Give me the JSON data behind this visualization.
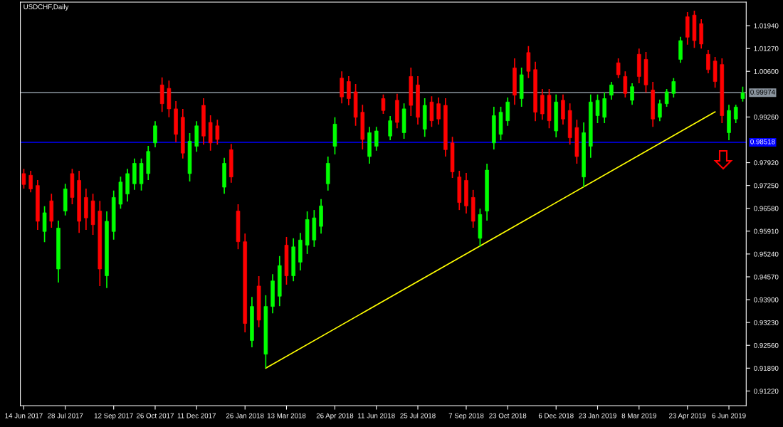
{
  "chart_data": {
    "type": "candlestick",
    "title": "USDCHF,Daily",
    "categories": [
      "14 Jun 2017",
      null,
      null,
      null,
      null,
      null,
      "28 Jul 2017",
      null,
      null,
      null,
      null,
      null,
      null,
      "12 Sep 2017",
      null,
      null,
      null,
      null,
      null,
      "26 Oct 2017",
      null,
      null,
      null,
      null,
      null,
      "11 Dec 2017",
      null,
      null,
      null,
      null,
      null,
      null,
      "26 Jan 2018",
      null,
      null,
      null,
      null,
      null,
      "13 Mar 2018",
      null,
      null,
      null,
      null,
      null,
      null,
      "26 Apr 2018",
      null,
      null,
      null,
      null,
      null,
      "11 Jun 2018",
      null,
      null,
      null,
      null,
      null,
      "25 Jul 2018",
      null,
      null,
      null,
      null,
      null,
      null,
      "7 Sep 2018",
      null,
      null,
      null,
      null,
      null,
      "23 Oct 2018",
      null,
      null,
      null,
      null,
      null,
      null,
      "6 Dec 2018",
      null,
      null,
      null,
      null,
      null,
      "23 Jan 2019",
      null,
      null,
      null,
      null,
      null,
      "8 Mar 2019",
      null,
      null,
      null,
      null,
      null,
      null,
      "23 Apr 2019",
      null,
      null,
      null,
      null,
      null,
      "6 Jun 2019",
      null,
      null
    ],
    "ohlc": [
      [
        0.976,
        0.9774,
        0.9716,
        0.9728
      ],
      [
        0.9755,
        0.9768,
        0.9705,
        0.9715
      ],
      [
        0.9725,
        0.9741,
        0.9595,
        0.962
      ],
      [
        0.959,
        0.9664,
        0.9559,
        0.9645
      ],
      [
        0.968,
        0.9701,
        0.9601,
        0.962
      ],
      [
        0.948,
        0.9622,
        0.944,
        0.96
      ],
      [
        0.965,
        0.973,
        0.9637,
        0.9715
      ],
      [
        0.976,
        0.9774,
        0.967,
        0.969
      ],
      [
        0.974,
        0.9768,
        0.9586,
        0.962
      ],
      [
        0.969,
        0.9716,
        0.9595,
        0.963
      ],
      [
        0.968,
        0.9701,
        0.958,
        0.961
      ],
      [
        0.965,
        0.968,
        0.943,
        0.948
      ],
      [
        0.946,
        0.9649,
        0.9424,
        0.962
      ],
      [
        0.959,
        0.971,
        0.9566,
        0.969
      ],
      [
        0.967,
        0.9751,
        0.9657,
        0.9735
      ],
      [
        0.97,
        0.9774,
        0.9678,
        0.976
      ],
      [
        0.973,
        0.9804,
        0.9712,
        0.979
      ],
      [
        0.973,
        0.9804,
        0.971,
        0.979
      ],
      [
        0.976,
        0.9841,
        0.9741,
        0.9825
      ],
      [
        0.985,
        0.9914,
        0.9837,
        0.99
      ],
      [
        1.002,
        1.0042,
        0.9941,
        0.9965
      ],
      [
        1.001,
        1.0033,
        0.9925,
        0.995
      ],
      [
        0.995,
        0.9973,
        0.9852,
        0.9875
      ],
      [
        0.9925,
        0.995,
        0.9804,
        0.982
      ],
      [
        0.976,
        0.9879,
        0.9737,
        0.9855
      ],
      [
        0.984,
        0.9914,
        0.9824,
        0.99
      ],
      [
        0.996,
        0.9981,
        0.9845,
        0.987
      ],
      [
        0.991,
        0.9931,
        0.9827,
        0.985
      ],
      [
        0.99,
        0.9918,
        0.9845,
        0.986
      ],
      [
        0.972,
        0.9806,
        0.9701,
        0.979
      ],
      [
        0.983,
        0.9847,
        0.9733,
        0.975
      ],
      [
        0.965,
        0.967,
        0.9538,
        0.956
      ],
      [
        0.956,
        0.9584,
        0.9294,
        0.932
      ],
      [
        0.927,
        0.9398,
        0.925,
        0.937
      ],
      [
        0.943,
        0.9459,
        0.9309,
        0.933
      ],
      [
        0.923,
        0.9403,
        0.9189,
        0.937
      ],
      [
        0.937,
        0.9465,
        0.935,
        0.9445
      ],
      [
        0.94,
        0.9518,
        0.9371,
        0.949
      ],
      [
        0.955,
        0.9574,
        0.9434,
        0.946
      ],
      [
        0.946,
        0.957,
        0.9444,
        0.9545
      ],
      [
        0.95,
        0.9586,
        0.9476,
        0.9565
      ],
      [
        0.955,
        0.9649,
        0.9524,
        0.9625
      ],
      [
        0.9565,
        0.9653,
        0.9545,
        0.963
      ],
      [
        0.9605,
        0.9685,
        0.9584,
        0.9665
      ],
      [
        0.973,
        0.981,
        0.971,
        0.979
      ],
      [
        0.984,
        0.9925,
        0.9816,
        0.9905
      ],
      [
        1.004,
        1.006,
        0.9966,
        0.9985
      ],
      [
        1.003,
        1.0046,
        0.996,
        0.998
      ],
      [
        1.0,
        1.0023,
        0.99,
        0.9925
      ],
      [
        0.994,
        0.9962,
        0.9831,
        0.986
      ],
      [
        0.981,
        0.9897,
        0.9789,
        0.988
      ],
      [
        0.984,
        0.9897,
        0.9827,
        0.9885
      ],
      [
        0.998,
        0.9992,
        0.9935,
        0.9945
      ],
      [
        0.987,
        0.9929,
        0.9858,
        0.9915
      ],
      [
        0.9975,
        0.9994,
        0.9893,
        0.991
      ],
      [
        0.988,
        0.9966,
        0.9862,
        0.995
      ],
      [
        1.0045,
        1.0071,
        0.9929,
        0.996
      ],
      [
        1.002,
        1.0046,
        0.9904,
        0.9925
      ],
      [
        0.989,
        0.9981,
        0.9868,
        0.996
      ],
      [
        0.997,
        0.9987,
        0.9897,
        0.9915
      ],
      [
        0.9965,
        0.9983,
        0.9904,
        0.992
      ],
      [
        0.996,
        0.9981,
        0.981,
        0.983
      ],
      [
        0.985,
        0.9868,
        0.9747,
        0.9765
      ],
      [
        0.975,
        0.9768,
        0.9653,
        0.9675
      ],
      [
        0.974,
        0.9762,
        0.9643,
        0.9665
      ],
      [
        0.969,
        0.9712,
        0.9601,
        0.962
      ],
      [
        0.957,
        0.9657,
        0.9545,
        0.964
      ],
      [
        0.965,
        0.9789,
        0.9622,
        0.977
      ],
      [
        0.985,
        0.9956,
        0.9831,
        0.993
      ],
      [
        0.9875,
        0.9956,
        0.9858,
        0.994
      ],
      [
        0.9915,
        0.9983,
        0.99,
        0.997
      ],
      [
        1.007,
        1.0098,
        0.9962,
        0.999
      ],
      [
        0.998,
        1.0071,
        0.9956,
        1.005
      ],
      [
        1.0115,
        1.0134,
        1.004,
        1.006
      ],
      [
        1.0065,
        1.0088,
        0.9914,
        0.994
      ],
      [
        0.999,
        1.0008,
        0.9918,
        0.9935
      ],
      [
        0.999,
        1.0008,
        0.9893,
        0.9915
      ],
      [
        0.9885,
        0.9992,
        0.9866,
        0.997
      ],
      [
        0.9975,
        0.9992,
        0.9904,
        0.992
      ],
      [
        0.9945,
        0.9966,
        0.9845,
        0.9865
      ],
      [
        0.9895,
        0.9918,
        0.9789,
        0.981
      ],
      [
        0.975,
        0.991,
        0.972,
        0.988
      ],
      [
        0.984,
        0.9992,
        0.9806,
        0.997
      ],
      [
        0.993,
        0.9992,
        0.9908,
        0.9975
      ],
      [
        0.9925,
        0.9998,
        0.9908,
        0.998
      ],
      [
        0.999,
        1.0029,
        0.9977,
        1.002
      ],
      [
        1.0085,
        1.0098,
        1.004,
        1.005
      ],
      [
        1.0045,
        1.006,
        0.9983,
        0.9995
      ],
      [
        0.9975,
        1.0025,
        0.9962,
        1.0015
      ],
      [
        1.011,
        1.0127,
        1.0025,
        1.0045
      ],
      [
        1.0095,
        1.0117,
        0.9998,
        1.002
      ],
      [
        1.0005,
        1.0029,
        0.9897,
        0.992
      ],
      [
        0.9925,
        0.9977,
        0.9914,
        0.9965
      ],
      [
        0.9965,
        1.0008,
        0.9956,
        1.0
      ],
      [
        0.9995,
        1.004,
        0.9983,
        1.003
      ],
      [
        1.0095,
        1.0161,
        1.0085,
        1.015
      ],
      [
        1.022,
        1.0234,
        1.0138,
        1.016
      ],
      [
        1.0225,
        1.0238,
        1.0129,
        1.015
      ],
      [
        1.02,
        1.0213,
        1.0127,
        1.014
      ],
      [
        1.011,
        1.0123,
        1.0054,
        1.0065
      ],
      [
        1.009,
        1.0102,
        1.0012,
        1.003
      ],
      [
        1.008,
        1.0098,
        0.9908,
        0.993
      ],
      [
        0.988,
        0.9962,
        0.9858,
        0.9945
      ],
      [
        0.992,
        0.9962,
        0.9908,
        0.9955
      ],
      [
        0.998,
        1.0015,
        0.9971,
        0.9997
      ]
    ],
    "colors": [
      "#ff0000",
      "#ff0000",
      "#ff0000",
      "#00ff00",
      "#ff0000",
      "#00ff00",
      "#00ff00",
      "#ff0000",
      "#ff0000",
      "#ff0000",
      "#ff0000",
      "#ff0000",
      "#00ff00",
      "#00ff00",
      "#00ff00",
      "#00ff00",
      "#00ff00",
      "#00ff00",
      "#00ff00",
      "#00ff00",
      "#ff0000",
      "#ff0000",
      "#ff0000",
      "#ff0000",
      "#00ff00",
      "#00ff00",
      "#ff0000",
      "#ff0000",
      "#ff0000",
      "#00ff00",
      "#ff0000",
      "#ff0000",
      "#ff0000",
      "#00ff00",
      "#ff0000",
      "#00ff00",
      "#00ff00",
      "#00ff00",
      "#ff0000",
      "#00ff00",
      "#00ff00",
      "#00ff00",
      "#00ff00",
      "#00ff00",
      "#00ff00",
      "#00ff00",
      "#ff0000",
      "#ff0000",
      "#ff0000",
      "#ff0000",
      "#00ff00",
      "#00ff00",
      "#ff0000",
      "#00ff00",
      "#ff0000",
      "#00ff00",
      "#ff0000",
      "#ff0000",
      "#00ff00",
      "#ff0000",
      "#ff0000",
      "#ff0000",
      "#ff0000",
      "#ff0000",
      "#ff0000",
      "#ff0000",
      "#00ff00",
      "#00ff00",
      "#00ff00",
      "#00ff00",
      "#00ff00",
      "#ff0000",
      "#00ff00",
      "#ff0000",
      "#ff0000",
      "#ff0000",
      "#ff0000",
      "#00ff00",
      "#ff0000",
      "#ff0000",
      "#ff0000",
      "#00ff00",
      "#00ff00",
      "#00ff00",
      "#00ff00",
      "#00ff00",
      "#ff0000",
      "#ff0000",
      "#00ff00",
      "#ff0000",
      "#ff0000",
      "#ff0000",
      "#00ff00",
      "#00ff00",
      "#00ff00",
      "#00ff00",
      "#ff0000",
      "#ff0000",
      "#ff0000",
      "#ff0000",
      "#ff0000",
      "#ff0000",
      "#00ff00",
      "#00ff00",
      "#00ff00"
    ],
    "series": [
      {
        "type": "line",
        "color": "#ffff00",
        "values": [
          null,
          null,
          null,
          null,
          null,
          null,
          null,
          null,
          null,
          null,
          null,
          null,
          null,
          null,
          null,
          null,
          null,
          null,
          null,
          null,
          null,
          null,
          null,
          null,
          null,
          null,
          null,
          null,
          null,
          null,
          null,
          null,
          null,
          null,
          null,
          0.9189,
          null,
          null,
          null,
          null,
          null,
          null,
          null,
          null,
          null,
          null,
          null,
          null,
          null,
          null,
          null,
          null,
          null,
          null,
          null,
          null,
          null,
          null,
          null,
          null,
          null,
          null,
          null,
          null,
          null,
          null,
          null,
          null,
          null,
          null,
          null,
          null,
          null,
          null,
          null,
          null,
          null,
          null,
          null,
          null,
          null,
          null,
          null,
          null,
          null,
          null,
          null,
          null,
          null,
          null,
          null,
          null,
          null,
          null,
          null,
          null,
          null,
          null,
          null,
          null,
          0.9941,
          null,
          null,
          null,
          null
        ]
      }
    ],
    "ref_lines": [
      {
        "axis": "y",
        "value": 0.99974,
        "label": "0.99974",
        "color": "#8c96a0"
      },
      {
        "axis": "y",
        "value": 0.98518,
        "label": "0.98518",
        "color": "#0000ff"
      }
    ],
    "ylim": [
      0.9079,
      1.0263
    ],
    "yticks": [
      {
        "value": 0.9122,
        "label": "0.91220"
      },
      {
        "value": 0.9189,
        "label": "0.91890"
      },
      {
        "value": 0.9256,
        "label": "0.92560"
      },
      {
        "value": 0.9323,
        "label": "0.93230"
      },
      {
        "value": 0.939,
        "label": "0.93900"
      },
      {
        "value": 0.9457,
        "label": "0.94570"
      },
      {
        "value": 0.9524,
        "label": "0.95240"
      },
      {
        "value": 0.9591,
        "label": "0.95910"
      },
      {
        "value": 0.9658,
        "label": "0.96580"
      },
      {
        "value": 0.9725,
        "label": "0.97250"
      },
      {
        "value": 0.9792,
        "label": "0.97920"
      },
      {
        "value": 0.9926,
        "label": "0.99260"
      },
      {
        "value": 1.006,
        "label": "1.00600"
      },
      {
        "value": 1.0127,
        "label": "1.01270"
      },
      {
        "value": 1.0194,
        "label": "1.01940"
      }
    ],
    "grid": false,
    "legend": false
  }
}
